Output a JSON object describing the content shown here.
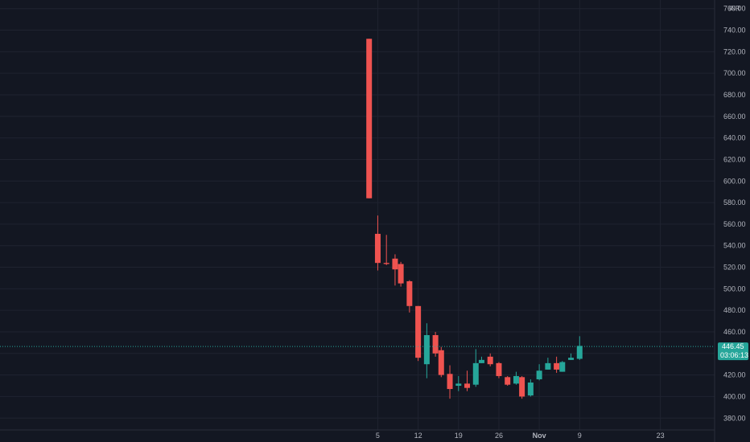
{
  "chart_data": {
    "type": "candlestick",
    "currency": "INR",
    "price_axis_ticks": [
      "760.00",
      "740.00",
      "720.00",
      "700.00",
      "680.00",
      "660.00",
      "640.00",
      "620.00",
      "600.00",
      "580.00",
      "560.00",
      "540.00",
      "520.00",
      "500.00",
      "480.00",
      "460.00",
      "440.00",
      "420.00",
      "400.00",
      "380.00"
    ],
    "price_axis_values": [
      760,
      740,
      720,
      700,
      680,
      660,
      640,
      620,
      600,
      580,
      560,
      540,
      520,
      500,
      480,
      460,
      440,
      420,
      400,
      380
    ],
    "time_axis_ticks": [
      {
        "label": "5",
        "day": 0,
        "bold": false
      },
      {
        "label": "12",
        "day": 7,
        "bold": false
      },
      {
        "label": "19",
        "day": 14,
        "bold": false
      },
      {
        "label": "26",
        "day": 21,
        "bold": false
      },
      {
        "label": "Nov",
        "day": 28,
        "bold": true
      },
      {
        "label": "9",
        "day": 35,
        "bold": false
      },
      {
        "label": "23",
        "day": 49,
        "bold": false
      }
    ],
    "ylim": [
      369,
      768
    ],
    "xlim_days": [
      -65.5,
      58.4
    ],
    "last_price": "446.45",
    "countdown": "03:06:13",
    "last_value": 446.45,
    "bar_days": [
      -1.5,
      0,
      1.5,
      3,
      4,
      5.5,
      7,
      8.5,
      10,
      11,
      12.5,
      14,
      15.5,
      17,
      18,
      19.5,
      21,
      22.5,
      24,
      25,
      26.5,
      28,
      29.5,
      31,
      32,
      33.5,
      35
    ],
    "candles": [
      {
        "o": 732,
        "h": 732,
        "l": 584,
        "c": 584
      },
      {
        "o": 551,
        "h": 568,
        "l": 517,
        "c": 524
      },
      {
        "o": 524,
        "h": 550,
        "l": 522,
        "c": 523
      },
      {
        "o": 528,
        "h": 532,
        "l": 503,
        "c": 518
      },
      {
        "o": 523,
        "h": 525,
        "l": 502,
        "c": 505
      },
      {
        "o": 507,
        "h": 508,
        "l": 478,
        "c": 484
      },
      {
        "o": 484,
        "h": 484,
        "l": 433,
        "c": 436
      },
      {
        "o": 430,
        "h": 468,
        "l": 417,
        "c": 457
      },
      {
        "o": 457,
        "h": 460,
        "l": 437,
        "c": 440
      },
      {
        "o": 443,
        "h": 446,
        "l": 418,
        "c": 420
      },
      {
        "o": 421,
        "h": 429,
        "l": 398,
        "c": 407
      },
      {
        "o": 410,
        "h": 419,
        "l": 405,
        "c": 412
      },
      {
        "o": 412,
        "h": 424,
        "l": 405,
        "c": 408
      },
      {
        "o": 411,
        "h": 444,
        "l": 409,
        "c": 431
      },
      {
        "o": 431,
        "h": 437,
        "l": 431,
        "c": 434
      },
      {
        "o": 437,
        "h": 440,
        "l": 428,
        "c": 430
      },
      {
        "o": 431,
        "h": 432,
        "l": 417,
        "c": 419
      },
      {
        "o": 418,
        "h": 419,
        "l": 410,
        "c": 411
      },
      {
        "o": 412,
        "h": 423,
        "l": 411,
        "c": 419
      },
      {
        "o": 418,
        "h": 419,
        "l": 398,
        "c": 400
      },
      {
        "o": 401,
        "h": 416,
        "l": 400,
        "c": 413
      },
      {
        "o": 416,
        "h": 430,
        "l": 415,
        "c": 424
      },
      {
        "o": 425,
        "h": 436,
        "l": 425,
        "c": 431
      },
      {
        "o": 431,
        "h": 437,
        "l": 422,
        "c": 425
      },
      {
        "o": 423,
        "h": 433,
        "l": 423,
        "c": 432
      },
      {
        "o": 434,
        "h": 440,
        "l": 434,
        "c": 436
      },
      {
        "o": 435,
        "h": 456,
        "l": 434,
        "c": 447
      }
    ],
    "colors": {
      "background": "#131722",
      "up": "#26a69a",
      "down": "#ef5350",
      "grid": "#1f2330",
      "text": "#b2b5be",
      "badge": "#26a69a"
    }
  }
}
